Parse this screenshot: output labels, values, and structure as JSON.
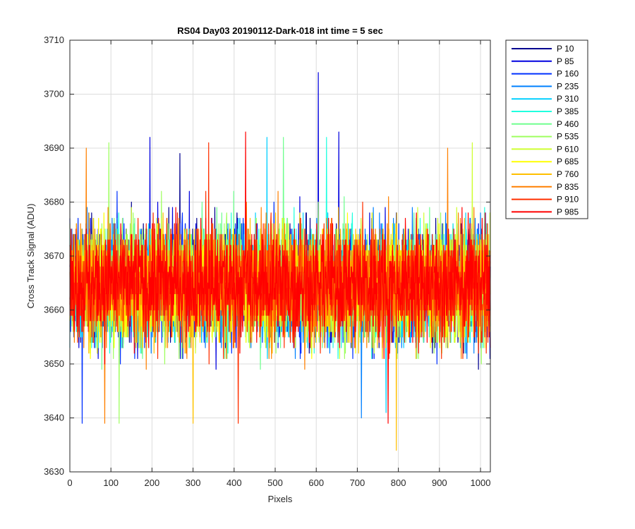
{
  "chart_data": {
    "type": "line",
    "title": "RS04 Day03 20190112-Dark-018 int time = 5 sec",
    "xlabel": "Pixels",
    "ylabel": "Cross Track Signal (ADU)",
    "xlim": [
      0,
      1024
    ],
    "ylim": [
      3630,
      3710
    ],
    "xticks": [
      0,
      100,
      200,
      300,
      400,
      500,
      600,
      700,
      800,
      900,
      1000
    ],
    "yticks": [
      3630,
      3640,
      3650,
      3660,
      3670,
      3680,
      3690,
      3700,
      3710
    ],
    "grid": true,
    "legend_position": "outside-right",
    "series": [
      {
        "name": "P 10",
        "color": "#00008F",
        "mean": 3665,
        "spread": 7.5,
        "spikes": [
          [
            268,
            3689
          ]
        ]
      },
      {
        "name": "P 85",
        "color": "#0000DF",
        "mean": 3665,
        "spread": 7.5,
        "spikes": [
          [
            195,
            3692
          ],
          [
            605,
            3704
          ],
          [
            655,
            3693
          ]
        ]
      },
      {
        "name": "P 160",
        "color": "#0030FF",
        "mean": 3665,
        "spread": 7.5,
        "spikes": [
          [
            30,
            3639
          ]
        ]
      },
      {
        "name": "P 235",
        "color": "#0080FF",
        "mean": 3665,
        "spread": 7.5,
        "spikes": [
          [
            710,
            3640
          ]
        ]
      },
      {
        "name": "P 310",
        "color": "#00CFFF",
        "mean": 3665,
        "spread": 7.5,
        "spikes": [
          [
            480,
            3692
          ],
          [
            770,
            3641
          ]
        ]
      },
      {
        "name": "P 385",
        "color": "#20FFDF",
        "mean": 3665,
        "spread": 7.5,
        "spikes": [
          [
            625,
            3692
          ]
        ]
      },
      {
        "name": "P 460",
        "color": "#70FF8F",
        "mean": 3665,
        "spread": 7.5,
        "spikes": [
          [
            520,
            3692
          ]
        ]
      },
      {
        "name": "P 535",
        "color": "#9FFF60",
        "mean": 3665,
        "spread": 7.5,
        "spikes": [
          [
            95,
            3691
          ],
          [
            120,
            3639
          ]
        ]
      },
      {
        "name": "P 610",
        "color": "#CFFF30",
        "mean": 3665,
        "spread": 7.5,
        "spikes": [
          [
            980,
            3691
          ]
        ]
      },
      {
        "name": "P 685",
        "color": "#FFFF00",
        "mean": 3665,
        "spread": 7.5,
        "spikes": [
          [
            300,
            3640
          ]
        ]
      },
      {
        "name": "P 760",
        "color": "#FFBF00",
        "mean": 3665,
        "spread": 7.5,
        "spikes": [
          [
            795,
            3634
          ],
          [
            300,
            3639
          ]
        ]
      },
      {
        "name": "P 835",
        "color": "#FF8000",
        "mean": 3665,
        "spread": 7.5,
        "spikes": [
          [
            40,
            3690
          ],
          [
            85,
            3639
          ],
          [
            920,
            3690
          ]
        ]
      },
      {
        "name": "P 910",
        "color": "#FF3000",
        "mean": 3665,
        "spread": 7.5,
        "spikes": [
          [
            338,
            3691
          ],
          [
            410,
            3639
          ]
        ]
      },
      {
        "name": "P 985",
        "color": "#FF0000",
        "mean": 3665,
        "spread": 7.5,
        "spikes": [
          [
            428,
            3693
          ],
          [
            775,
            3639
          ]
        ]
      }
    ]
  }
}
